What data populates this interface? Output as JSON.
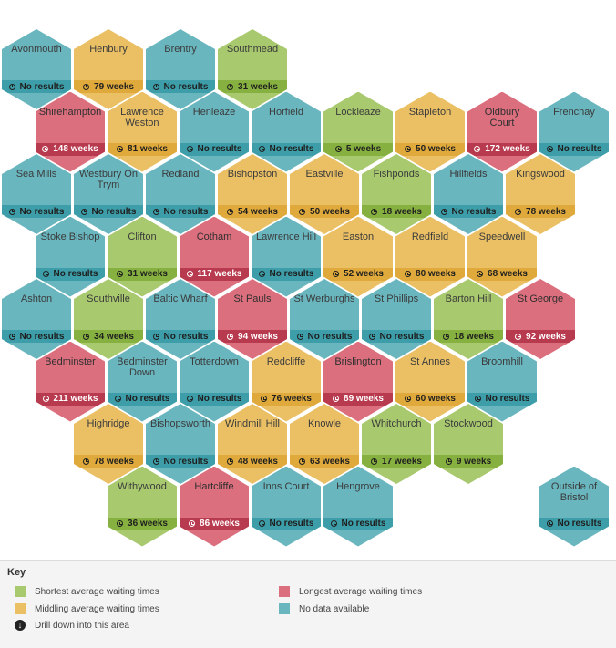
{
  "status_colors": {
    "green": "#a8c96e",
    "orange": "#ebc065",
    "red": "#dc6f7e",
    "teal": "#69b6bf"
  },
  "areas": [
    {
      "name": "Avonmouth",
      "label": "No results",
      "status": "teal",
      "row": 0,
      "col": 0
    },
    {
      "name": "Henbury",
      "label": "79 weeks",
      "status": "orange",
      "row": 0,
      "col": 1
    },
    {
      "name": "Brentry",
      "label": "No results",
      "status": "teal",
      "row": 0,
      "col": 2
    },
    {
      "name": "Southmead",
      "label": "31 weeks",
      "status": "green",
      "row": 0,
      "col": 3
    },
    {
      "name": "Shirehampton",
      "label": "148 weeks",
      "status": "red",
      "row": 1,
      "col": 0
    },
    {
      "name": "Lawrence Weston",
      "label": "81 weeks",
      "status": "orange",
      "row": 1,
      "col": 1
    },
    {
      "name": "Henleaze",
      "label": "No results",
      "status": "teal",
      "row": 1,
      "col": 2
    },
    {
      "name": "Horfield",
      "label": "No results",
      "status": "teal",
      "row": 1,
      "col": 3
    },
    {
      "name": "Lockleaze",
      "label": "5 weeks",
      "status": "green",
      "row": 1,
      "col": 4
    },
    {
      "name": "Stapleton",
      "label": "50 weeks",
      "status": "orange",
      "row": 1,
      "col": 5
    },
    {
      "name": "Oldbury Court",
      "label": "172 weeks",
      "status": "red",
      "row": 1,
      "col": 6
    },
    {
      "name": "Frenchay",
      "label": "No results",
      "status": "teal",
      "row": 1,
      "col": 7
    },
    {
      "name": "Sea Mills",
      "label": "No results",
      "status": "teal",
      "row": 2,
      "col": 0
    },
    {
      "name": "Westbury On Trym",
      "label": "No results",
      "status": "teal",
      "row": 2,
      "col": 1
    },
    {
      "name": "Redland",
      "label": "No results",
      "status": "teal",
      "row": 2,
      "col": 2
    },
    {
      "name": "Bishopston",
      "label": "54 weeks",
      "status": "orange",
      "row": 2,
      "col": 3
    },
    {
      "name": "Eastville",
      "label": "50 weeks",
      "status": "orange",
      "row": 2,
      "col": 4
    },
    {
      "name": "Fishponds",
      "label": "18 weeks",
      "status": "green",
      "row": 2,
      "col": 5
    },
    {
      "name": "Hillfields",
      "label": "No results",
      "status": "teal",
      "row": 2,
      "col": 6
    },
    {
      "name": "Kingswood",
      "label": "78 weeks",
      "status": "orange",
      "row": 2,
      "col": 7
    },
    {
      "name": "Stoke Bishop",
      "label": "No results",
      "status": "teal",
      "row": 3,
      "col": 0
    },
    {
      "name": "Clifton",
      "label": "31 weeks",
      "status": "green",
      "row": 3,
      "col": 1
    },
    {
      "name": "Cotham",
      "label": "117 weeks",
      "status": "red",
      "row": 3,
      "col": 2
    },
    {
      "name": "Lawrence Hill",
      "label": "No results",
      "status": "teal",
      "row": 3,
      "col": 3
    },
    {
      "name": "Easton",
      "label": "52 weeks",
      "status": "orange",
      "row": 3,
      "col": 4
    },
    {
      "name": "Redfield",
      "label": "80 weeks",
      "status": "orange",
      "row": 3,
      "col": 5
    },
    {
      "name": "Speedwell",
      "label": "68 weeks",
      "status": "orange",
      "row": 3,
      "col": 6
    },
    {
      "name": "Ashton",
      "label": "No results",
      "status": "teal",
      "row": 4,
      "col": 0
    },
    {
      "name": "Southville",
      "label": "34 weeks",
      "status": "green",
      "row": 4,
      "col": 1
    },
    {
      "name": "Baltic Wharf",
      "label": "No results",
      "status": "teal",
      "row": 4,
      "col": 2
    },
    {
      "name": "St Pauls",
      "label": "94 weeks",
      "status": "red",
      "row": 4,
      "col": 3
    },
    {
      "name": "St Werburghs",
      "label": "No results",
      "status": "teal",
      "row": 4,
      "col": 4
    },
    {
      "name": "St Phillips",
      "label": "No results",
      "status": "teal",
      "row": 4,
      "col": 5
    },
    {
      "name": "Barton Hill",
      "label": "18 weeks",
      "status": "green",
      "row": 4,
      "col": 6
    },
    {
      "name": "St George",
      "label": "92 weeks",
      "status": "red",
      "row": 4,
      "col": 7
    },
    {
      "name": "Bedminster",
      "label": "211 weeks",
      "status": "red",
      "row": 5,
      "col": 0
    },
    {
      "name": "Bedminster Down",
      "label": "No results",
      "status": "teal",
      "row": 5,
      "col": 1
    },
    {
      "name": "Totterdown",
      "label": "No results",
      "status": "teal",
      "row": 5,
      "col": 2
    },
    {
      "name": "Redcliffe",
      "label": "76 weeks",
      "status": "orange",
      "row": 5,
      "col": 3
    },
    {
      "name": "Brislington",
      "label": "89 weeks",
      "status": "red",
      "row": 5,
      "col": 4
    },
    {
      "name": "St Annes",
      "label": "60 weeks",
      "status": "orange",
      "row": 5,
      "col": 5
    },
    {
      "name": "Broomhill",
      "label": "No results",
      "status": "teal",
      "row": 5,
      "col": 6
    },
    {
      "name": "Highridge",
      "label": "78 weeks",
      "status": "orange",
      "row": 6,
      "col": 1
    },
    {
      "name": "Bishopsworth",
      "label": "No results",
      "status": "teal",
      "row": 6,
      "col": 2
    },
    {
      "name": "Windmill Hill",
      "label": "48 weeks",
      "status": "orange",
      "row": 6,
      "col": 3
    },
    {
      "name": "Knowle",
      "label": "63 weeks",
      "status": "orange",
      "row": 6,
      "col": 4
    },
    {
      "name": "Whitchurch",
      "label": "17 weeks",
      "status": "green",
      "row": 6,
      "col": 5
    },
    {
      "name": "Stockwood",
      "label": "9 weeks",
      "status": "green",
      "row": 6,
      "col": 6
    },
    {
      "name": "Withywood",
      "label": "36 weeks",
      "status": "green",
      "row": 7,
      "col": 1
    },
    {
      "name": "Hartcliffe",
      "label": "86 weeks",
      "status": "red",
      "row": 7,
      "col": 2
    },
    {
      "name": "Inns Court",
      "label": "No results",
      "status": "teal",
      "row": 7,
      "col": 3
    },
    {
      "name": "Hengrove",
      "label": "No results",
      "status": "teal",
      "row": 7,
      "col": 4
    },
    {
      "name": "Outside of Bristol",
      "label": "No results",
      "status": "teal",
      "row": 7,
      "col": 7
    }
  ],
  "legend": {
    "title": "Key",
    "shortest": "Shortest average waiting times",
    "middling": "Middling average waiting times",
    "drill": "Drill down into this area",
    "longest": "Longest average waiting times",
    "no_data": "No data available"
  }
}
